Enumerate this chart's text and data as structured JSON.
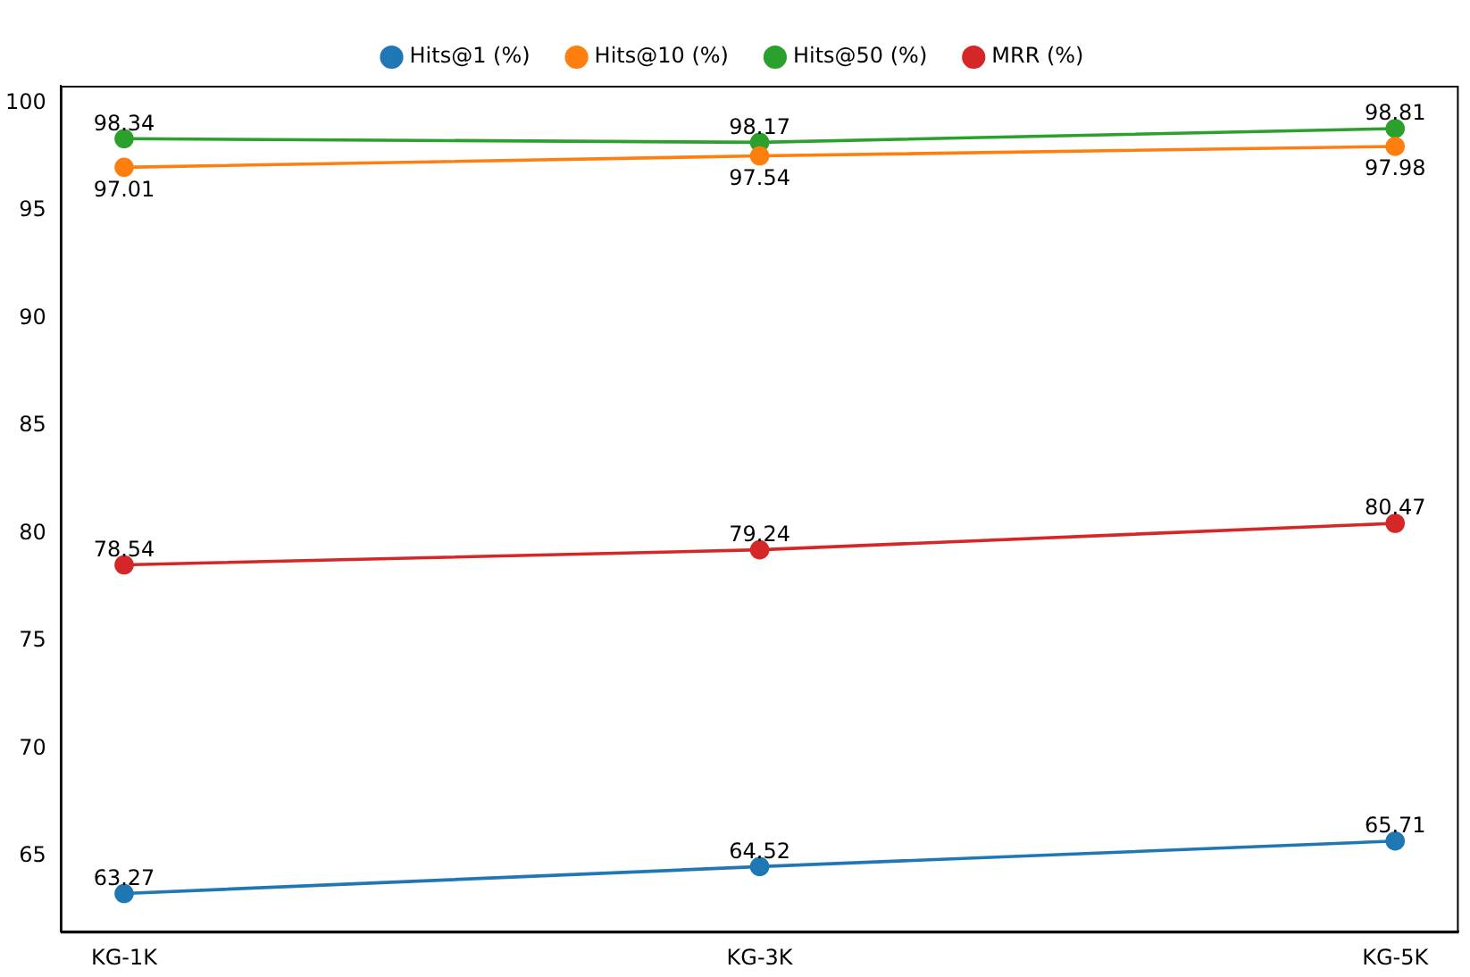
{
  "chart_data": {
    "type": "line",
    "categories": [
      "KG-1K",
      "KG-3K",
      "KG-5K"
    ],
    "series": [
      {
        "name": "Hits@1 (%)",
        "color": "#1f77b4",
        "values": [
          63.27,
          64.52,
          65.71
        ]
      },
      {
        "name": "Hits@10 (%)",
        "color": "#ff7f0e",
        "values": [
          97.01,
          97.54,
          97.98
        ]
      },
      {
        "name": "Hits@50 (%)",
        "color": "#2ca02c",
        "values": [
          98.34,
          98.17,
          98.81
        ]
      },
      {
        "name": "MRR (%)",
        "color": "#d62728",
        "values": [
          78.54,
          79.24,
          80.47
        ]
      }
    ],
    "ylim": [
      61.5,
      100.8
    ],
    "yticks": [
      65,
      70,
      75,
      80,
      85,
      90,
      95,
      100
    ],
    "grid": false,
    "legend": "top",
    "marker": "circle",
    "line_style": "solid",
    "data_labels": true
  }
}
